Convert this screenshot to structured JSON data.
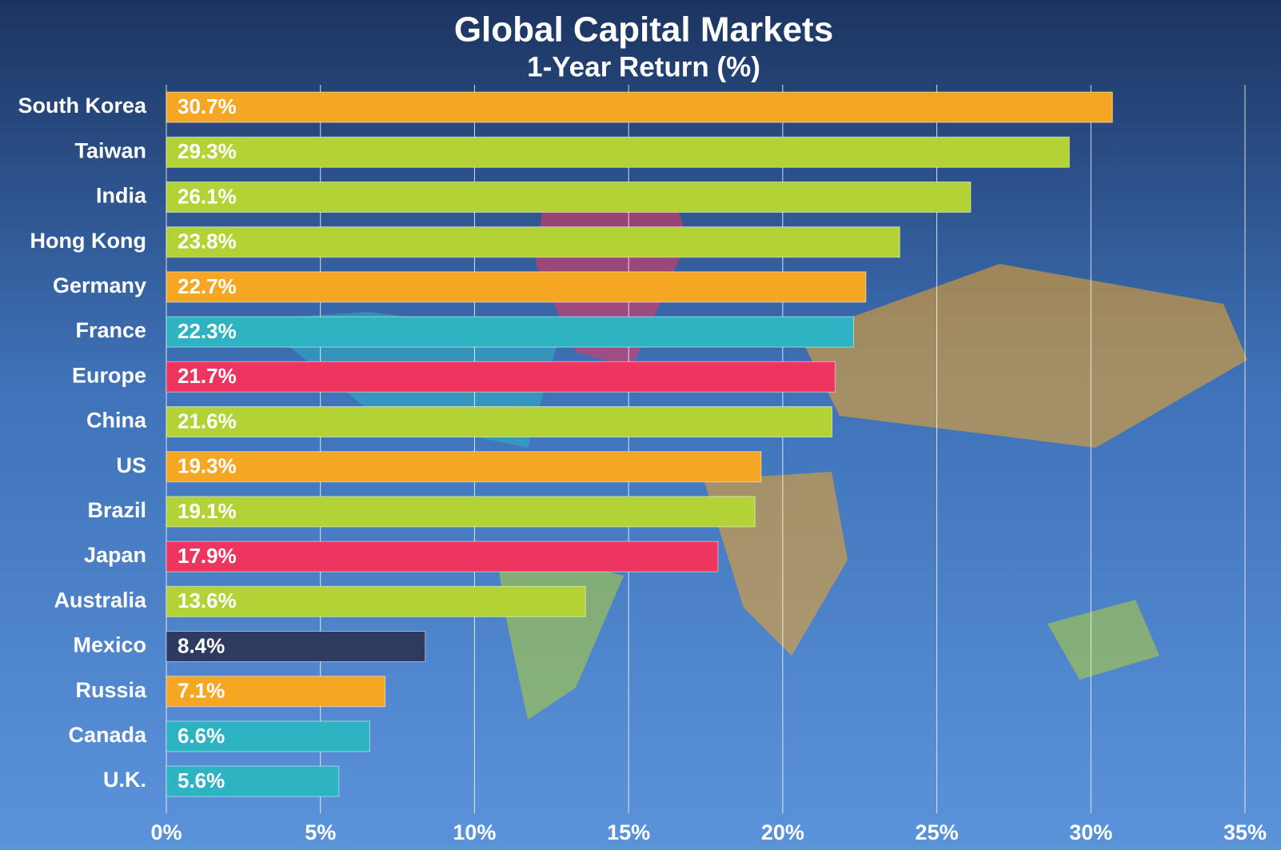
{
  "chart_data": {
    "type": "bar",
    "orientation": "horizontal",
    "title": "Global Capital Markets",
    "subtitle": "1-Year Return (%)",
    "categories": [
      "South Korea",
      "Taiwan",
      "India",
      "Hong Kong",
      "Germany",
      "France",
      "Europe",
      "China",
      "US",
      "Brazil",
      "Japan",
      "Australia",
      "Mexico",
      "Russia",
      "Canada",
      "U.K."
    ],
    "values": [
      30.7,
      29.3,
      26.1,
      23.8,
      22.7,
      22.3,
      21.7,
      21.6,
      19.3,
      19.1,
      17.9,
      13.6,
      8.4,
      7.1,
      6.6,
      5.6
    ],
    "value_labels": [
      "30.7%",
      "29.3%",
      "26.1%",
      "23.8%",
      "22.7%",
      "22.3%",
      "21.7%",
      "21.6%",
      "19.3%",
      "19.1%",
      "17.9%",
      "13.6%",
      "8.4%",
      "7.1%",
      "6.6%",
      "5.6%"
    ],
    "colors": [
      "#f5a623",
      "#b2d235",
      "#b2d235",
      "#b2d235",
      "#f5a623",
      "#2eb3c2",
      "#ee3560",
      "#b2d235",
      "#f5a623",
      "#b2d235",
      "#ee3560",
      "#b2d235",
      "#2e3a5f",
      "#f5a623",
      "#2eb3c2",
      "#2eb3c2"
    ],
    "xlim": [
      0,
      35
    ],
    "xticks": [
      {
        "value": 0,
        "label": "0%"
      },
      {
        "value": 5,
        "label": "5%"
      },
      {
        "value": 10,
        "label": "10%"
      },
      {
        "value": 15,
        "label": "15%"
      },
      {
        "value": 20,
        "label": "20%"
      },
      {
        "value": 25,
        "label": "25%"
      },
      {
        "value": 30,
        "label": "30%"
      },
      {
        "value": 35,
        "label": "35%"
      }
    ],
    "grid": true
  }
}
